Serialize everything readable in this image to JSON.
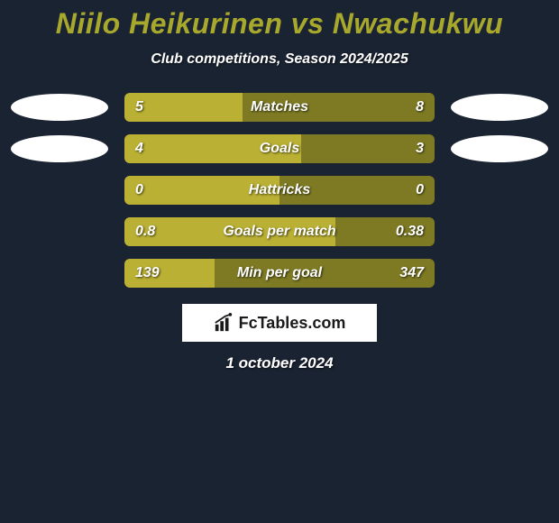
{
  "title": {
    "player1": "Niilo Heikurinen",
    "vs": "vs",
    "player2": "Nwachukwu",
    "color": "#a8a82c",
    "fontsize": 32
  },
  "subtitle": {
    "text": "Club competitions, Season 2024/2025",
    "color": "#ffffff",
    "fontsize": 16
  },
  "background_color": "#1a2332",
  "bar_colors": {
    "left": "#bab034",
    "right": "#7d7a23"
  },
  "stats": [
    {
      "label": "Matches",
      "left_val": "5",
      "right_val": "8",
      "left_pct": 38,
      "show_left_logo": true,
      "show_right_logo": true
    },
    {
      "label": "Goals",
      "left_val": "4",
      "right_val": "3",
      "left_pct": 57,
      "show_left_logo": true,
      "show_right_logo": true
    },
    {
      "label": "Hattricks",
      "left_val": "0",
      "right_val": "0",
      "left_pct": 50,
      "show_left_logo": false,
      "show_right_logo": false
    },
    {
      "label": "Goals per match",
      "left_val": "0.8",
      "right_val": "0.38",
      "left_pct": 68,
      "show_left_logo": false,
      "show_right_logo": false
    },
    {
      "label": "Min per goal",
      "left_val": "139",
      "right_val": "347",
      "left_pct": 29,
      "show_left_logo": false,
      "show_right_logo": false
    }
  ],
  "branding": {
    "text": "FcTables.com",
    "background": "#ffffff",
    "text_color": "#1a1a1a"
  },
  "date": "1 october 2024"
}
